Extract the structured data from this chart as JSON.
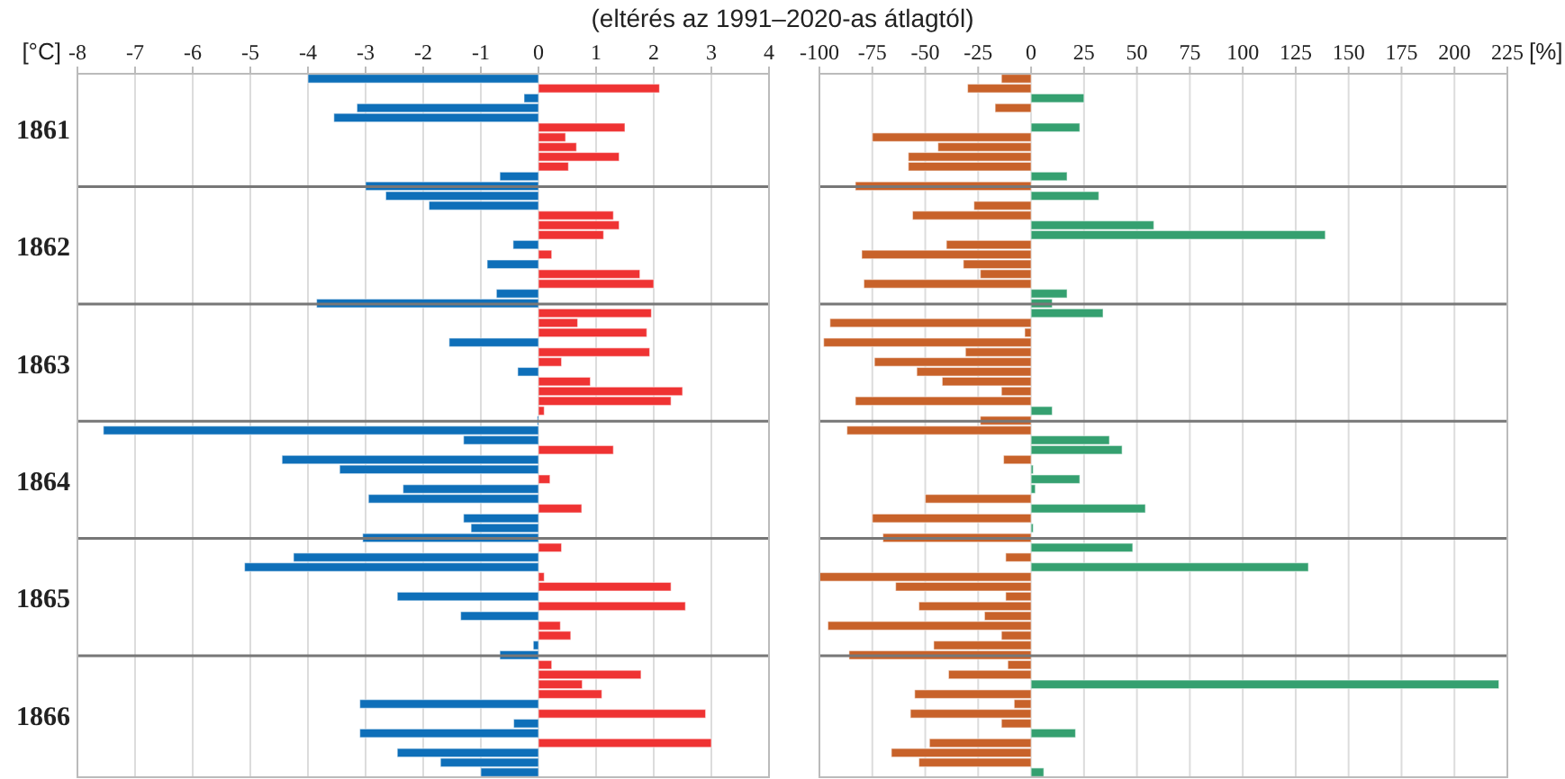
{
  "chart_data": [
    {
      "type": "bar",
      "orientation": "horizontal",
      "title": "(eltérés az 1991–2020-as átlagtól)",
      "xlabel": "[°C]",
      "categories": [
        null,
        null,
        null,
        null,
        null,
        "1861",
        null,
        null,
        null,
        null,
        null,
        null,
        null,
        null,
        null,
        null,
        null,
        "1862",
        null,
        null,
        null,
        null,
        null,
        null,
        null,
        null,
        null,
        null,
        null,
        "1863",
        null,
        null,
        null,
        null,
        null,
        null,
        null,
        null,
        null,
        null,
        null,
        "1864",
        null,
        null,
        null,
        null,
        null,
        null,
        null,
        null,
        null,
        null,
        null,
        "1865",
        null,
        null,
        null,
        null,
        null,
        null,
        null,
        null,
        null,
        null,
        null,
        "1866",
        null,
        null,
        null,
        null,
        null,
        null
      ],
      "values": [
        -4.0,
        2.1,
        -0.25,
        -3.15,
        -3.55,
        1.5,
        0.47,
        0.66,
        1.4,
        0.52,
        -0.67,
        -3.0,
        -2.65,
        -1.9,
        1.3,
        1.4,
        1.13,
        -0.44,
        0.23,
        -0.89,
        1.76,
        2.0,
        -0.73,
        -3.85,
        1.96,
        0.68,
        1.88,
        -1.55,
        1.93,
        0.4,
        -0.36,
        0.9,
        2.5,
        2.3,
        0.1,
        -0.02,
        -7.55,
        -1.3,
        1.3,
        -4.45,
        -3.45,
        0.2,
        -2.35,
        -2.95,
        0.75,
        -1.3,
        -1.17,
        -3.05,
        0.4,
        -4.25,
        -5.1,
        0.1,
        2.3,
        -2.45,
        2.55,
        -1.35,
        0.38,
        0.56,
        -0.09,
        -0.67,
        0.23,
        1.78,
        0.76,
        1.1,
        -3.1,
        2.9,
        -0.43,
        -3.1,
        3.0,
        -2.45,
        -1.7,
        -1.0
      ],
      "colors": [
        "#0e6fb9",
        "#ef3333",
        "#0e6fb9",
        "#0e6fb9",
        "#0e6fb9",
        "#ef3333",
        "#ef3333",
        "#ef3333",
        "#ef3333",
        "#ef3333",
        "#0e6fb9",
        "#0e6fb9",
        "#0e6fb9",
        "#0e6fb9",
        "#ef3333",
        "#ef3333",
        "#ef3333",
        "#0e6fb9",
        "#ef3333",
        "#0e6fb9",
        "#ef3333",
        "#ef3333",
        "#0e6fb9",
        "#0e6fb9",
        "#ef3333",
        "#ef3333",
        "#ef3333",
        "#0e6fb9",
        "#ef3333",
        "#ef3333",
        "#0e6fb9",
        "#ef3333",
        "#ef3333",
        "#ef3333",
        "#ef3333",
        "#0e6fb9",
        "#0e6fb9",
        "#0e6fb9",
        "#ef3333",
        "#0e6fb9",
        "#0e6fb9",
        "#ef3333",
        "#0e6fb9",
        "#0e6fb9",
        "#ef3333",
        "#0e6fb9",
        "#0e6fb9",
        "#0e6fb9",
        "#ef3333",
        "#0e6fb9",
        "#0e6fb9",
        "#ef3333",
        "#ef3333",
        "#0e6fb9",
        "#ef3333",
        "#0e6fb9",
        "#ef3333",
        "#ef3333",
        "#0e6fb9",
        "#0e6fb9",
        "#ef3333",
        "#ef3333",
        "#ef3333",
        "#ef3333",
        "#0e6fb9",
        "#ef3333",
        "#0e6fb9",
        "#0e6fb9",
        "#ef3333",
        "#0e6fb9",
        "#0e6fb9",
        "#0e6fb9"
      ],
      "xlim": [
        -8,
        4
      ],
      "xticks": [
        -8,
        -7,
        -6,
        -5,
        -4,
        -3,
        -2,
        -1,
        0,
        1,
        2,
        3,
        4
      ],
      "grid": "x"
    },
    {
      "type": "bar",
      "orientation": "horizontal",
      "xlabel": "[%]",
      "tick_labels": "x",
      "categories": [
        null,
        null,
        null,
        null,
        null,
        null,
        null,
        null,
        null,
        null,
        null,
        null,
        null,
        null,
        null,
        null,
        null,
        null,
        null,
        null,
        null,
        null,
        null,
        null,
        null,
        null,
        null,
        null,
        null,
        null,
        null,
        null,
        null,
        null,
        null,
        null,
        null,
        null,
        null,
        null,
        null,
        null,
        null,
        null,
        null,
        null,
        null,
        null,
        null,
        null,
        null,
        null,
        null,
        null,
        null,
        null,
        null,
        null,
        null,
        null,
        null,
        null,
        null,
        null,
        null,
        null,
        null,
        null,
        null,
        null,
        null,
        null
      ],
      "values": [
        -14,
        -30,
        25,
        -17,
        0,
        23,
        -75,
        -44,
        -58,
        -58,
        17,
        -83,
        32,
        -27,
        -56,
        58,
        139,
        -40,
        -80,
        -32,
        -24,
        -79,
        17,
        10,
        34,
        -95,
        -3,
        -98,
        -31,
        -74,
        -54,
        -42,
        -14,
        -83,
        10,
        -24,
        -87,
        37,
        43,
        -13,
        1,
        23,
        2,
        -50,
        54,
        -75,
        1,
        -70,
        48,
        -12,
        131,
        -100,
        -64,
        -12,
        -53,
        -22,
        -96,
        -14,
        -46,
        -86,
        -11,
        -39,
        221,
        -55,
        -8,
        -57,
        -14,
        21,
        -48,
        -66,
        -53,
        6
      ],
      "colors": [
        "#c8622a",
        "#c8622a",
        "#35a070",
        "#c8622a",
        "#35a070",
        "#35a070",
        "#c8622a",
        "#c8622a",
        "#c8622a",
        "#c8622a",
        "#35a070",
        "#c8622a",
        "#35a070",
        "#c8622a",
        "#c8622a",
        "#35a070",
        "#35a070",
        "#c8622a",
        "#c8622a",
        "#c8622a",
        "#c8622a",
        "#c8622a",
        "#35a070",
        "#35a070",
        "#35a070",
        "#c8622a",
        "#c8622a",
        "#c8622a",
        "#c8622a",
        "#c8622a",
        "#c8622a",
        "#c8622a",
        "#c8622a",
        "#c8622a",
        "#35a070",
        "#c8622a",
        "#c8622a",
        "#35a070",
        "#35a070",
        "#c8622a",
        "#35a070",
        "#35a070",
        "#35a070",
        "#c8622a",
        "#35a070",
        "#c8622a",
        "#35a070",
        "#c8622a",
        "#35a070",
        "#c8622a",
        "#35a070",
        "#c8622a",
        "#c8622a",
        "#c8622a",
        "#c8622a",
        "#c8622a",
        "#c8622a",
        "#c8622a",
        "#c8622a",
        "#c8622a",
        "#c8622a",
        "#c8622a",
        "#35a070",
        "#c8622a",
        "#c8622a",
        "#c8622a",
        "#c8622a",
        "#35a070",
        "#c8622a",
        "#c8622a",
        "#c8622a",
        "#35a070"
      ],
      "xlim": [
        -100,
        225
      ],
      "xticks": [
        -100,
        -75,
        -50,
        -25,
        0,
        25,
        50,
        75,
        100,
        125,
        150,
        175,
        200,
        225
      ],
      "grid": "x"
    }
  ]
}
